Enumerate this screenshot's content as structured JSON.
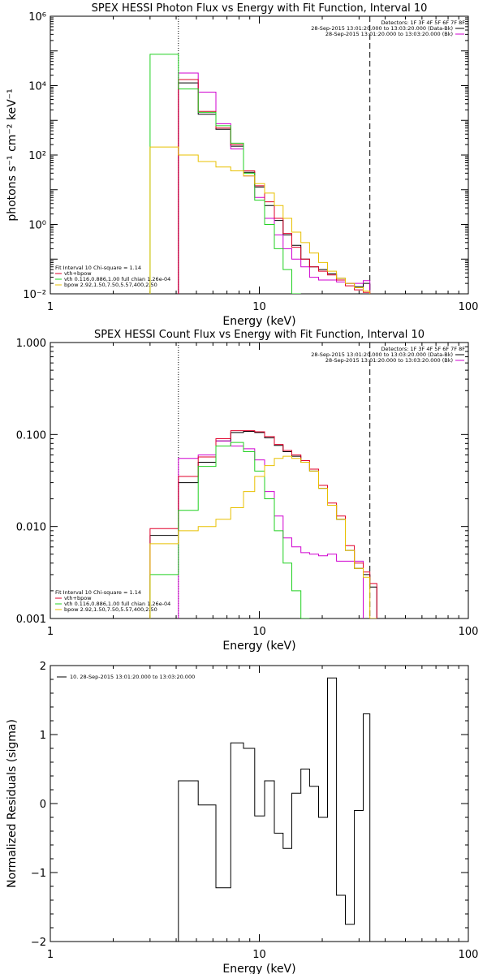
{
  "colors": {
    "data": "#000000",
    "bkg": "#d000d0",
    "total": "#e0002a",
    "vth": "#20d020",
    "bpow": "#e8c000"
  },
  "chart_data": [
    {
      "type": "line",
      "title": "SPEX HESSI Photon Flux vs Energy with Fit Function, Interval 10",
      "xlabel": "Energy (keV)",
      "ylabel": "photons s⁻¹ cm⁻² keV⁻¹",
      "xscale": "log",
      "yscale": "log",
      "xlim": [
        1,
        100
      ],
      "ylim": [
        0.01,
        1000000
      ],
      "xticks": [
        {
          "v": 1,
          "label": "1"
        },
        {
          "v": 10,
          "label": "10"
        },
        {
          "v": 100,
          "label": "100"
        }
      ],
      "yticks": [
        {
          "v": 0.01,
          "label": "10⁻²"
        },
        {
          "v": 1,
          "label": "10⁰"
        },
        {
          "v": 100,
          "label": "10²"
        },
        {
          "v": 10000,
          "label": "10⁴"
        },
        {
          "v": 1000000,
          "label": "10⁶"
        }
      ],
      "vlines": [
        {
          "x": 4.1,
          "style": "dotted"
        },
        {
          "x": 33.8,
          "style": "dashed"
        }
      ],
      "legend_header": "Detectors: 1F 3F 4F 5F 6F 7F 8F",
      "legend_lines": [
        {
          "text": "28-Sep-2015 13:01:20.000 to 13:03:20.000 (Data-Bk)",
          "color": "#000000"
        },
        {
          "text": "28-Sep-2015 13:01:20.000 to 13:03:20.000 (Bk)",
          "color": "#d000d0"
        }
      ],
      "fit_header": "Fit Interval 10   Chi-square = 1.14",
      "fit_lines": [
        {
          "text": "vth+bpow",
          "color": "#e0002a"
        },
        {
          "text": "vth 0.116,0.886,1.00  full chian 1.26e-04",
          "color": "#20d020"
        },
        {
          "text": "bpow 2.92,1.50,7.50,5.57,400,2.50",
          "color": "#e8c000"
        }
      ],
      "edges": [
        3.0,
        4.1,
        5.1,
        6.2,
        7.3,
        8.4,
        9.5,
        10.6,
        11.8,
        13.0,
        14.3,
        15.8,
        17.4,
        19.2,
        21.2,
        23.4,
        25.8,
        28.5,
        31.4,
        33.8
      ],
      "series": [
        {
          "name": "Data-Bk",
          "color": "#000000",
          "start": 1,
          "values": [
            12000,
            1500,
            550,
            180,
            32,
            12,
            3.5,
            1.3,
            0.5,
            0.25,
            0.1,
            0.06,
            0.05,
            0.038,
            0.028,
            0.02,
            0.016,
            0.02
          ]
        },
        {
          "name": "Bk",
          "color": "#d000d0",
          "start": 1,
          "values": [
            23000,
            6500,
            800,
            150,
            25,
            6,
            1.5,
            0.5,
            0.2,
            0.1,
            0.06,
            0.03,
            0.025,
            0.025,
            0.022,
            0.02,
            0.02,
            0.024
          ]
        },
        {
          "name": "vth+bpow",
          "color": "#e0002a",
          "start": 1,
          "values": [
            15000,
            1800,
            600,
            200,
            35,
            13,
            4.5,
            1.5,
            0.55,
            0.22,
            0.1,
            0.06,
            0.045,
            0.035,
            0.025,
            0.017,
            0.013,
            0.011
          ]
        },
        {
          "name": "vth",
          "color": "#20d020",
          "start": 0,
          "values": [
            80000,
            8000,
            1700,
            700,
            220,
            30,
            5,
            1,
            0.2,
            0.05,
            0.01
          ]
        },
        {
          "name": "bpow",
          "color": "#e8c000",
          "start": 0,
          "values": [
            170,
            100,
            65,
            45,
            35,
            25,
            15,
            8,
            3.5,
            1.5,
            0.6,
            0.3,
            0.15,
            0.08,
            0.045,
            0.028,
            0.02,
            0.015,
            0.012
          ]
        }
      ]
    },
    {
      "type": "line",
      "title": "SPEX HESSI Count Flux vs Energy with Fit Function, Interval 10",
      "xlabel": "Energy (keV)",
      "ylabel": "",
      "xscale": "log",
      "yscale": "log",
      "xlim": [
        1,
        100
      ],
      "ylim": [
        0.001,
        1
      ],
      "xticks": [
        {
          "v": 1,
          "label": "1"
        },
        {
          "v": 10,
          "label": "10"
        },
        {
          "v": 100,
          "label": "100"
        }
      ],
      "yticks": [
        {
          "v": 0.001,
          "label": "0.001"
        },
        {
          "v": 0.01,
          "label": "0.010"
        },
        {
          "v": 0.1,
          "label": "0.100"
        },
        {
          "v": 1,
          "label": "1.000"
        }
      ],
      "vlines": [
        {
          "x": 4.1,
          "style": "dotted"
        },
        {
          "x": 33.8,
          "style": "dashed"
        }
      ],
      "legend_header": "Detectors: 1F 3F 4F 5F 6F 7F 8F",
      "legend_lines": [
        {
          "text": "28-Sep-2015 13:01:20.000 to 13:03:20.000 (Data-Bk)",
          "color": "#000000"
        },
        {
          "text": "28-Sep-2015 13:01:20.000 to 13:03:20.000 (Bk)",
          "color": "#d000d0"
        }
      ],
      "fit_header": "Fit Interval 10   Chi-square = 1.14",
      "fit_lines": [
        {
          "text": "vth+bpow",
          "color": "#e0002a"
        },
        {
          "text": "vth 0.116,0.886,1.00  full chian 1.26e-04",
          "color": "#20d020"
        },
        {
          "text": "bpow 2.92,1.50,7.50,5.57,400,2.50",
          "color": "#e8c000"
        }
      ],
      "edges": [
        3.0,
        4.1,
        5.1,
        6.2,
        7.3,
        8.4,
        9.5,
        10.6,
        11.8,
        13.0,
        14.3,
        15.8,
        17.4,
        19.2,
        21.2,
        23.4,
        25.8,
        28.5,
        31.4,
        33.8,
        36.5
      ],
      "series": [
        {
          "name": "Data-Bk",
          "color": "#000000",
          "start": 0,
          "values": [
            0.008,
            0.03,
            0.05,
            0.085,
            0.105,
            0.108,
            0.105,
            0.092,
            0.076,
            0.065,
            0.058,
            0.05,
            0.04,
            0.026,
            0.017,
            0.012,
            0.0055,
            0.0035,
            0.003,
            0.0022
          ]
        },
        {
          "name": "Bk",
          "color": "#d000d0",
          "start": 1,
          "values": [
            0.055,
            0.06,
            0.085,
            0.075,
            0.07,
            0.053,
            0.024,
            0.013,
            0.0075,
            0.006,
            0.0052,
            0.005,
            0.0048,
            0.005,
            0.0042,
            0.0042,
            0.0042
          ]
        },
        {
          "name": "vth+bpow",
          "color": "#e0002a",
          "start": 0,
          "values": [
            0.0095,
            0.035,
            0.057,
            0.09,
            0.11,
            0.11,
            0.107,
            0.095,
            0.078,
            0.067,
            0.06,
            0.052,
            0.042,
            0.028,
            0.018,
            0.013,
            0.0062,
            0.004,
            0.0032,
            0.0024
          ]
        },
        {
          "name": "vth",
          "color": "#20d020",
          "start": 0,
          "values": [
            0.003,
            0.015,
            0.045,
            0.075,
            0.082,
            0.065,
            0.04,
            0.02,
            0.009,
            0.004,
            0.002,
            0.001
          ]
        },
        {
          "name": "bpow",
          "color": "#e8c000",
          "start": 0,
          "values": [
            0.0065,
            0.009,
            0.01,
            0.012,
            0.016,
            0.024,
            0.035,
            0.046,
            0.055,
            0.058,
            0.055,
            0.05,
            0.04,
            0.026,
            0.017,
            0.012,
            0.0055,
            0.0035,
            0.0028,
            0.001
          ]
        }
      ]
    },
    {
      "type": "line",
      "title": "",
      "xlabel": "Energy (keV)",
      "ylabel": "Normalized Residuals (sigma)",
      "xscale": "log",
      "yscale": "linear",
      "xlim": [
        1,
        100
      ],
      "ylim": [
        -2,
        2
      ],
      "xticks": [
        {
          "v": 1,
          "label": "1"
        },
        {
          "v": 10,
          "label": "10"
        },
        {
          "v": 100,
          "label": "100"
        }
      ],
      "yticks": [
        {
          "v": -2,
          "label": "−2"
        },
        {
          "v": -1,
          "label": "−1"
        },
        {
          "v": 0,
          "label": "0"
        },
        {
          "v": 1,
          "label": "1"
        },
        {
          "v": 2,
          "label": "2"
        }
      ],
      "legend_lines": [
        {
          "text": "10. 28-Sep-2015 13:01:20.000 to 13:03:20.000",
          "color": "#000000"
        }
      ],
      "edges": [
        4.1,
        5.1,
        6.2,
        7.3,
        8.4,
        9.5,
        10.6,
        11.8,
        13.0,
        14.3,
        15.8,
        17.4,
        19.2,
        21.2,
        23.4,
        25.8,
        28.5,
        31.4,
        33.8
      ],
      "series": [
        {
          "name": "residuals",
          "color": "#000000",
          "start": 0,
          "values": [
            0.33,
            -0.02,
            -1.22,
            0.88,
            0.8,
            -0.18,
            0.33,
            -0.43,
            -0.65,
            0.15,
            0.5,
            0.25,
            -0.2,
            1.82,
            -1.33,
            -1.75,
            -0.1,
            1.3
          ]
        }
      ]
    }
  ]
}
